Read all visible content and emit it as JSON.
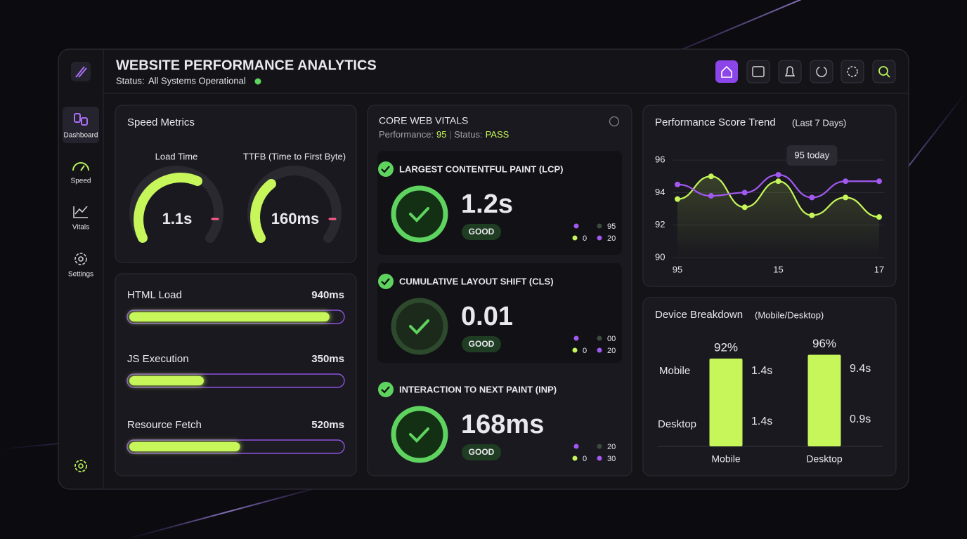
{
  "sidebar": {
    "nav": [
      "Dashboard",
      "Speed",
      "Vitals",
      "Settings"
    ]
  },
  "header": {
    "title": "WEBSITE PERFORMANCE ANALYTICS",
    "status_label": "Status:",
    "status": "All Systems Operational"
  },
  "speed_metrics": {
    "title": "Speed Metrics",
    "gauges": [
      {
        "label": "Load Time",
        "value": "1.1s"
      },
      {
        "label": "TTFB (Time to First Byte)",
        "value": "160ms"
      }
    ]
  },
  "core_web_vitals": {
    "title": "CORE WEB VITALS",
    "performance_label": "Performance:",
    "performance": "95",
    "status_label": "Status:",
    "status": "PASS",
    "metrics": [
      {
        "title": "LARGEST CONTENTFUL PAINT (LCP)",
        "value": "1.2s",
        "rating": "GOOD",
        "legend": [
          "95",
          "0",
          "20"
        ]
      },
      {
        "title": "CUMULATIVE LAYOUT SHIFT (CLS)",
        "value": "0.01",
        "rating": "GOOD",
        "legend": [
          "00",
          "0",
          "20"
        ]
      },
      {
        "title": "INTERACTION TO NEXT PAINT (INP)",
        "value": "168ms",
        "rating": "GOOD",
        "legend": [
          "20",
          "0",
          "30"
        ]
      }
    ]
  },
  "chart_data": [
    {
      "type": "hbar",
      "categories": [
        "HTML Load",
        "JS Execution",
        "Resource Fetch"
      ],
      "values": [
        940,
        350,
        520
      ],
      "value_labels": [
        "940ms",
        "350ms",
        "520ms"
      ],
      "xlim": [
        0,
        1000
      ],
      "color": "#c6f65a"
    },
    {
      "type": "line",
      "title": "Performance Score Trend",
      "subtitle": "(Last 7 Days)",
      "categories": [
        "95",
        null,
        null,
        "15",
        null,
        null,
        "17"
      ],
      "series": [
        {
          "color": "#a259f0",
          "values": [
            94.5,
            93.8,
            94.0,
            95.1,
            93.7,
            94.7,
            94.7
          ]
        },
        {
          "color": "#c6f65a",
          "values": [
            93.6,
            95.0,
            93.1,
            94.7,
            92.6,
            93.7,
            92.5
          ]
        }
      ],
      "ylim": [
        90,
        97
      ],
      "yticks": [
        90,
        92,
        94,
        96
      ],
      "grid": true,
      "annotation": "95 today"
    },
    {
      "type": "bar",
      "title": "Device Breakdown",
      "subtitle": "(Mobile/Desktop)",
      "categories": [
        "Mobile",
        "Desktop"
      ],
      "values": [
        92,
        96
      ],
      "value_labels": [
        "92%",
        "96%"
      ],
      "ylim": [
        0,
        100
      ],
      "color": "#c6f65a",
      "row_labels": [
        "Mobile",
        "Desktop"
      ],
      "annotations": [
        [
          "1.4s",
          "1.4s"
        ],
        [
          "9.4s",
          "0.9s"
        ]
      ]
    }
  ]
}
